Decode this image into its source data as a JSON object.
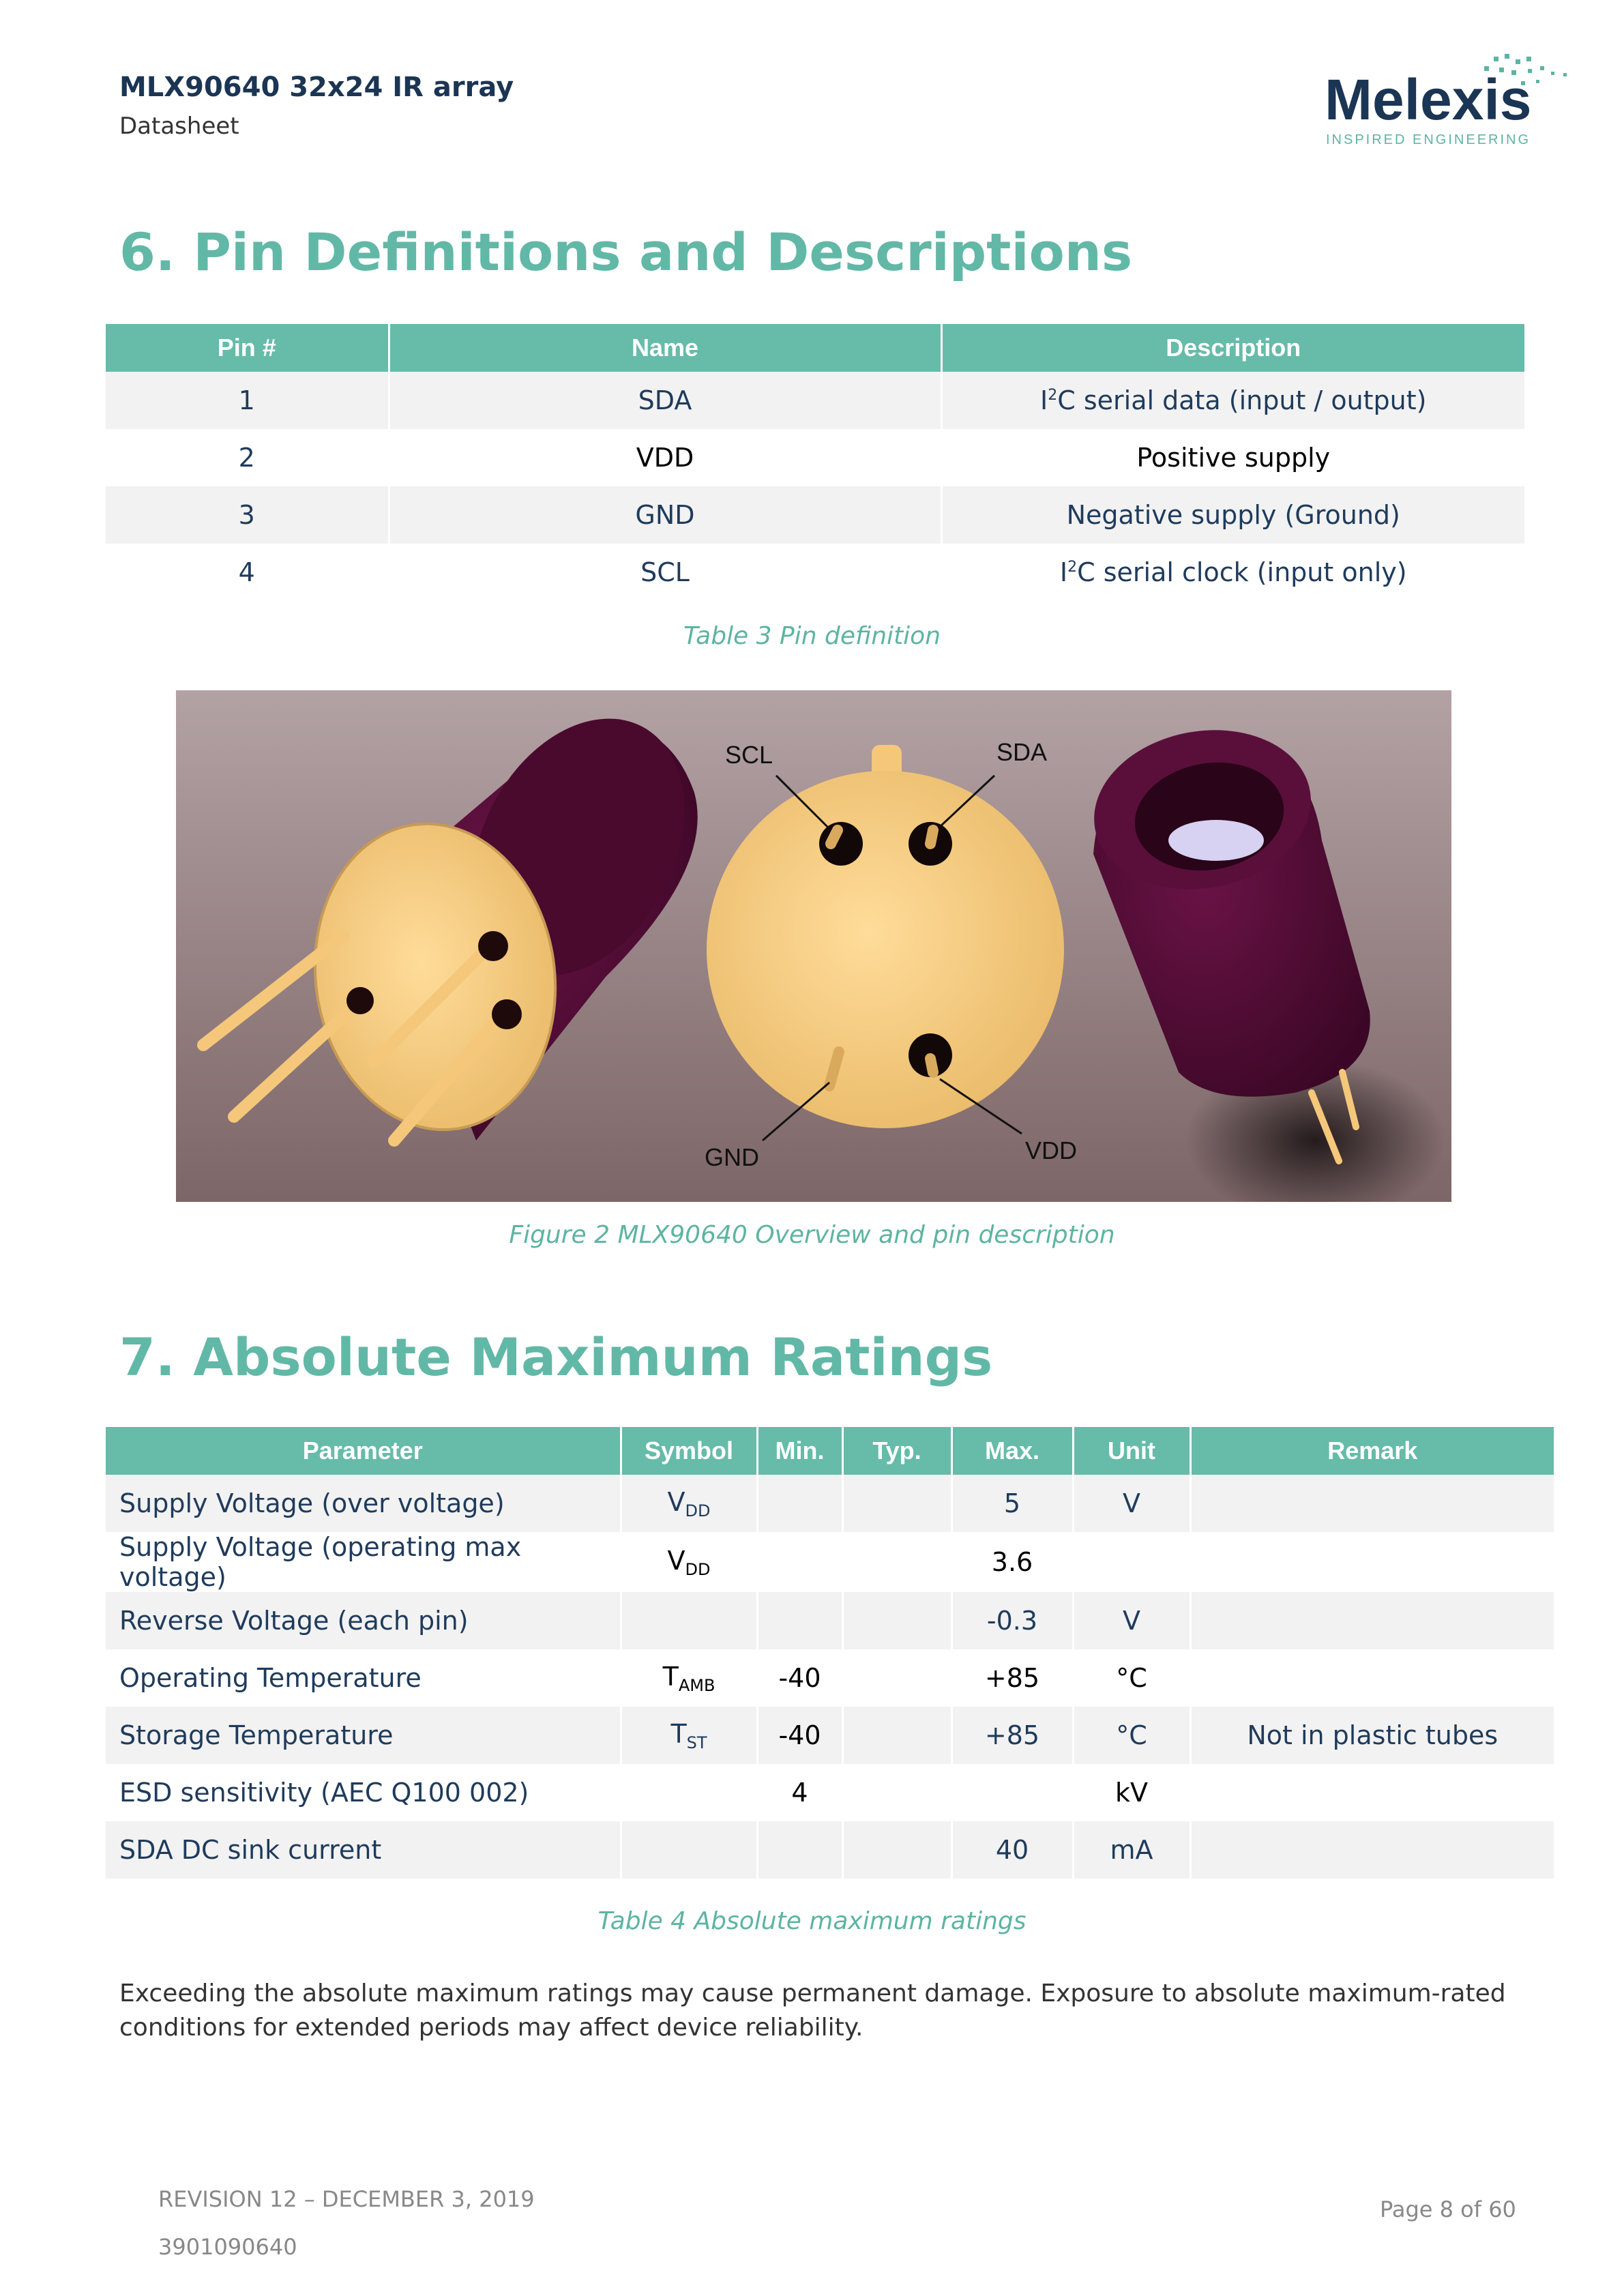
{
  "header": {
    "title": "MLX90640 32x24 IR array",
    "subtitle": "Datasheet",
    "logo_text": "Melexis",
    "logo_tagline": "INSPIRED ENGINEERING"
  },
  "section6": {
    "heading": "6. Pin Definitions and Descriptions",
    "table": {
      "headers": [
        "Pin #",
        "Name",
        "Description"
      ],
      "rows": [
        {
          "pin": "1",
          "name": "SDA",
          "desc_pre": "I",
          "desc_sup": "2",
          "desc_post": "C serial data (input / output)"
        },
        {
          "pin": "2",
          "name": "VDD",
          "desc": "Positive supply"
        },
        {
          "pin": "3",
          "name": "GND",
          "desc": "Negative supply (Ground)"
        },
        {
          "pin": "4",
          "name": "SCL",
          "desc_pre": "I",
          "desc_sup": "2",
          "desc_post": "C  serial clock (input only)"
        }
      ]
    },
    "table_caption": "Table 3 Pin definition",
    "figure": {
      "labels": {
        "scl": "SCL",
        "sda": "SDA",
        "gnd": "GND",
        "vdd": "VDD"
      },
      "caption": "Figure 2 MLX90640 Overview and pin description"
    }
  },
  "section7": {
    "heading": "7. Absolute Maximum Ratings",
    "table": {
      "headers": [
        "Parameter",
        "Symbol",
        "Min.",
        "Typ.",
        "Max.",
        "Unit",
        "Remark"
      ],
      "rows": [
        {
          "param": "Supply Voltage (over voltage)",
          "sym": "V",
          "sym_sub": "DD",
          "min": "",
          "typ": "",
          "max": "5",
          "unit": "V",
          "remark": ""
        },
        {
          "param": "Supply Voltage (operating max voltage)",
          "sym": "V",
          "sym_sub": "DD",
          "min": "",
          "typ": "",
          "max": "3.6",
          "unit": "",
          "remark": ""
        },
        {
          "param": "Reverse Voltage (each pin)",
          "sym": "",
          "sym_sub": "",
          "min": "",
          "typ": "",
          "max": "-0.3",
          "unit": "V",
          "remark": ""
        },
        {
          "param": "Operating Temperature",
          "sym": "T",
          "sym_sub": "AMB",
          "min": "-40",
          "typ": "",
          "max": "+85",
          "unit": "°C",
          "remark": ""
        },
        {
          "param": "Storage Temperature",
          "sym": "T",
          "sym_sub": "ST",
          "min": "-40",
          "typ": "",
          "max": "+85",
          "unit": "°C",
          "remark": "Not in plastic tubes"
        },
        {
          "param": "ESD sensitivity (AEC Q100 002)",
          "sym": "",
          "sym_sub": "",
          "min": "4",
          "typ": "",
          "max": "",
          "unit": "kV",
          "remark": ""
        },
        {
          "param": "SDA DC sink current",
          "sym": "",
          "sym_sub": "",
          "min": "",
          "typ": "",
          "max": "40",
          "unit": "mA",
          "remark": ""
        }
      ]
    },
    "table_caption": "Table 4 Absolute maximum ratings",
    "note": "Exceeding the absolute maximum ratings may cause permanent damage.  Exposure to absolute maximum-rated conditions for extended periods may affect device reliability."
  },
  "footer": {
    "revision": "REVISION 12 – DECEMBER 3, 2019",
    "doc_number": "3901090640",
    "page": "Page 8 of 60"
  },
  "colors": {
    "accent": "#62b8a6",
    "header_fill": "#66bba9",
    "navy": "#1b3554"
  }
}
